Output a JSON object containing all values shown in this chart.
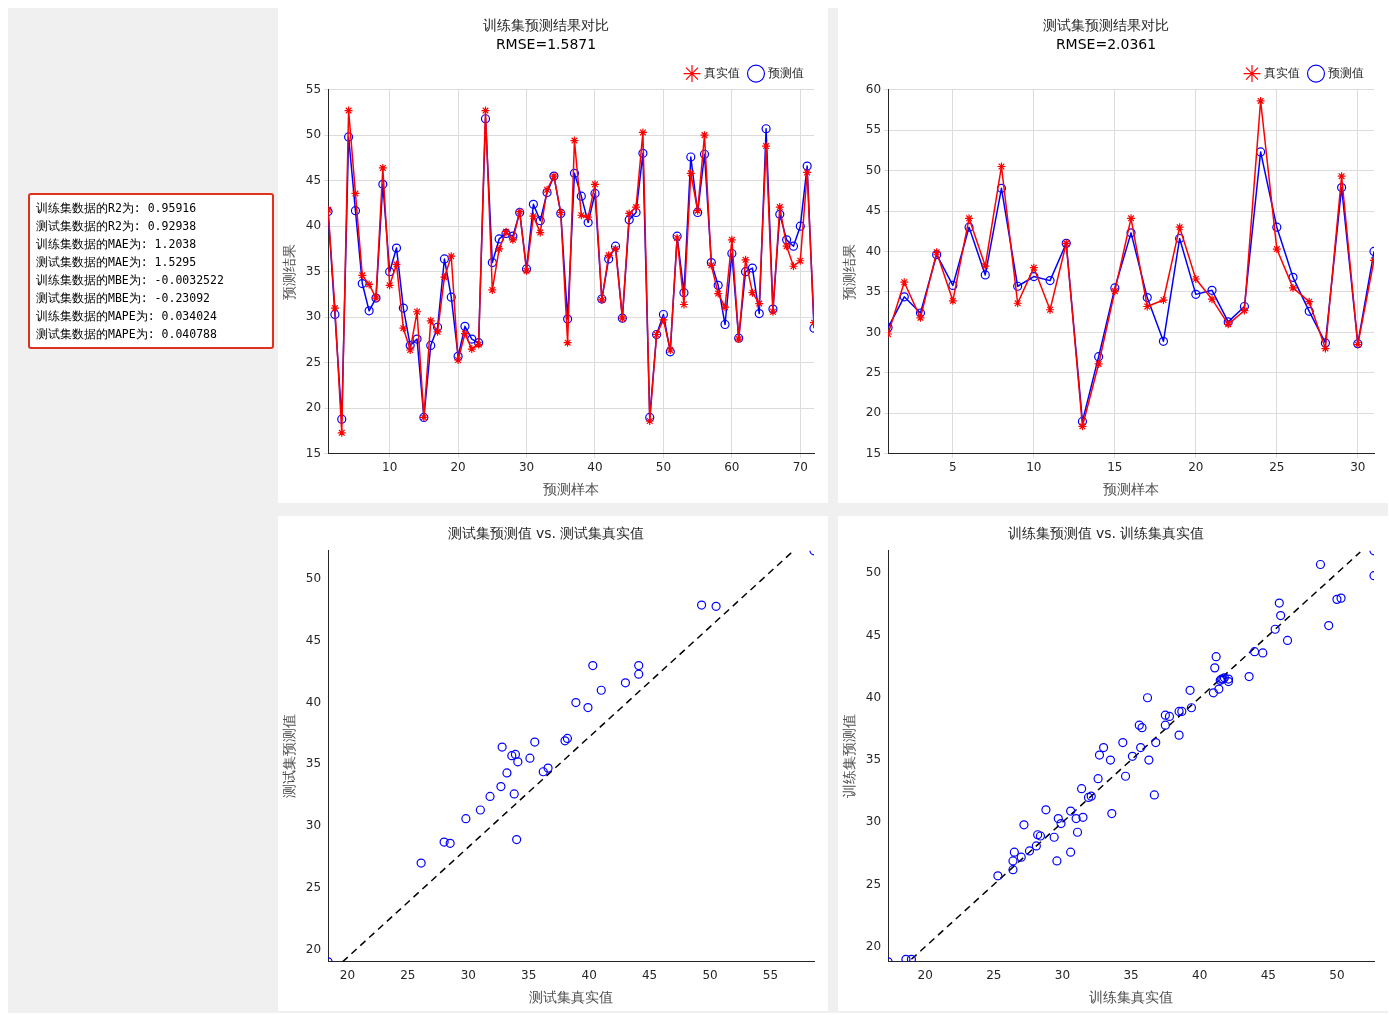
{
  "chart_data": [
    {
      "type": "other",
      "annotations": [
        "训练集数据的R2为: 0.95916",
        "测试集数据的R2为: 0.92938",
        "训练集数据的MAE为: 1.2038",
        "测试集数据的MAE为: 1.5295",
        "训练集数据的MBE为: -0.0032522",
        "测试集数据的MBE为: -0.23092",
        "训练集数据的MAPE为: 0.034024",
        "测试集数据的MAPE为: 0.040788"
      ]
    },
    {
      "type": "line",
      "title": "训练集预测结果对比",
      "subtitle": "RMSE=1.5871",
      "xlabel": "预测样本",
      "ylabel": "预测结果",
      "x": [
        1,
        2,
        3,
        4,
        5,
        6,
        7,
        8,
        9,
        10,
        11,
        12,
        13,
        14,
        15,
        16,
        17,
        18,
        19,
        20,
        21,
        22,
        23,
        24,
        25,
        26,
        27,
        28,
        29,
        30,
        31,
        32,
        33,
        34,
        35,
        36,
        37,
        38,
        39,
        40,
        41,
        42,
        43,
        44,
        45,
        46,
        47,
        48,
        49,
        50,
        51,
        52,
        53,
        54,
        55,
        56,
        57,
        58,
        59,
        60,
        61,
        62,
        63,
        64,
        65,
        66,
        67,
        68,
        69,
        70,
        71,
        72
      ],
      "xlim": [
        1,
        72
      ],
      "xticks": [
        10,
        20,
        30,
        40,
        50,
        60,
        70
      ],
      "ylim": [
        15,
        55
      ],
      "yticks": [
        15,
        20,
        25,
        30,
        35,
        40,
        45,
        50,
        55
      ],
      "grid": true,
      "legend": "top right",
      "series": [
        {
          "name": "真实值",
          "color": "#ff0000",
          "marker": "cross",
          "values": [
            41.8,
            31,
            17.3,
            52.7,
            43.6,
            34.6,
            33.6,
            32.1,
            46.4,
            33.5,
            35.8,
            28.8,
            26.4,
            30.6,
            19,
            29.6,
            28.4,
            34.4,
            36.7,
            25.3,
            28.2,
            26.5,
            27,
            52.7,
            33,
            37.5,
            39.4,
            38.5,
            41.6,
            35.1,
            41.1,
            39.3,
            44,
            45.5,
            41.5,
            27.2,
            49.4,
            41.2,
            41,
            44.6,
            31.9,
            36.8,
            37.5,
            29.9,
            41.4,
            42.1,
            50.3,
            18.6,
            28.1,
            29.7,
            26.4,
            38.7,
            31.4,
            45.8,
            41.7,
            50,
            35.7,
            32.6,
            31.1,
            38.5,
            27.6,
            36.3,
            32.7,
            31.5,
            48.8,
            30.6,
            42.1,
            37.8,
            35.6,
            36.2,
            45.9,
            29.4
          ]
        },
        {
          "name": "预测值",
          "color": "#0000ff",
          "marker": "circle",
          "values": [
            41.6,
            30.3,
            18.8,
            49.8,
            41.7,
            33.7,
            30.7,
            32.1,
            44.6,
            35,
            37.6,
            31,
            26.9,
            27.6,
            19,
            26.9,
            28.9,
            36.4,
            32.2,
            25.7,
            29,
            27.6,
            27.2,
            51.8,
            36,
            38.6,
            39.2,
            38.9,
            41.5,
            35.3,
            42.4,
            40.6,
            43.7,
            45.5,
            41.4,
            29.8,
            45.8,
            43.3,
            40.4,
            43.6,
            32,
            36.4,
            37.8,
            29.9,
            40.7,
            41.5,
            48,
            19,
            28.1,
            30.3,
            26.2,
            38.9,
            32.7,
            47.6,
            41.5,
            47.9,
            36,
            33.5,
            29.2,
            37,
            27.7,
            35,
            35.4,
            30.4,
            50.7,
            30.9,
            41.3,
            38.5,
            37.8,
            40,
            46.6,
            28.8
          ]
        }
      ]
    },
    {
      "type": "line",
      "title": "测试集预测结果对比",
      "subtitle": "RMSE=2.0361",
      "xlabel": "预测样本",
      "ylabel": "预测结果",
      "x": [
        1,
        2,
        3,
        4,
        5,
        6,
        7,
        8,
        9,
        10,
        11,
        12,
        13,
        14,
        15,
        16,
        17,
        18,
        19,
        20,
        21,
        22,
        23,
        24,
        25,
        26,
        27,
        28,
        29,
        30,
        31
      ],
      "xlim": [
        1,
        31
      ],
      "xticks": [
        5,
        10,
        15,
        20,
        25,
        30
      ],
      "ylim": [
        15,
        60
      ],
      "yticks": [
        15,
        20,
        25,
        30,
        35,
        40,
        45,
        50,
        55,
        60
      ],
      "grid": true,
      "legend": "top right",
      "series": [
        {
          "name": "真实值",
          "color": "#ff0000",
          "marker": "cross",
          "values": [
            29.8,
            36.2,
            31.8,
            39.9,
            33.9,
            44.1,
            38.2,
            50.5,
            33.6,
            38,
            32.8,
            41,
            18.4,
            26.1,
            35.1,
            44.1,
            33.2,
            34,
            43,
            36.6,
            34.1,
            31,
            32.7,
            58.6,
            40.3,
            35.5,
            33.8,
            28,
            49.3,
            28.5,
            38.9
          ]
        },
        {
          "name": "预测值",
          "color": "#0000ff",
          "marker": "circle",
          "values": [
            30.6,
            34.4,
            32.4,
            39.6,
            35.8,
            43,
            37.1,
            47.8,
            35.7,
            36.9,
            36.4,
            41,
            19,
            27,
            35.5,
            42.3,
            34.3,
            28.9,
            41.6,
            34.7,
            35.2,
            31.3,
            33.2,
            52.3,
            43,
            36.8,
            32.6,
            28.7,
            47.9,
            28.6,
            40
          ]
        }
      ]
    },
    {
      "type": "scatter",
      "title": "测试集预测值 vs. 测试集真实值",
      "xlabel": "测试集真实值",
      "ylabel": "测试集预测值",
      "xlim": [
        18.4,
        58.6
      ],
      "xticks": [
        20,
        25,
        30,
        35,
        40,
        45,
        50,
        55
      ],
      "ylim": [
        19,
        52.3
      ],
      "yticks": [
        20,
        25,
        30,
        35,
        40,
        45,
        50
      ],
      "series": [
        {
          "color": "#0000ff",
          "marker": "circle",
          "x": [
            29.8,
            36.2,
            31.8,
            39.9,
            33.9,
            44.1,
            38.2,
            50.5,
            33.6,
            38,
            32.8,
            41,
            18.4,
            26.1,
            35.1,
            44.1,
            33.2,
            34,
            43,
            36.6,
            34.1,
            31,
            32.7,
            58.6,
            40.3,
            35.5,
            33.8,
            28,
            49.3,
            28.5,
            38.9
          ],
          "values": [
            30.6,
            34.4,
            32.4,
            39.6,
            35.8,
            43,
            37.1,
            47.8,
            35.7,
            36.9,
            36.4,
            41,
            19,
            27,
            35.5,
            42.3,
            34.3,
            28.9,
            41.6,
            34.7,
            35.2,
            31.3,
            33.2,
            52.3,
            43,
            36.8,
            32.6,
            28.7,
            47.9,
            28.6,
            40
          ]
        },
        {
          "type": "line",
          "color": "#000000",
          "marker": "none",
          "line_style": "dashed",
          "x": [
            19.6,
            56.9
          ],
          "values": [
            19,
            52.3
          ]
        }
      ]
    },
    {
      "type": "scatter",
      "title": "训练集预测值 vs. 训练集真实值",
      "xlabel": "训练集真实值",
      "ylabel": "训练集预测值",
      "xlim": [
        17.3,
        52.7
      ],
      "xticks": [
        20,
        25,
        30,
        35,
        40,
        45,
        50
      ],
      "ylim": [
        18.8,
        51.8
      ],
      "yticks": [
        20,
        25,
        30,
        35,
        40,
        45,
        50
      ],
      "series": [
        {
          "color": "#0000ff",
          "marker": "circle",
          "x": [
            41.8,
            31,
            17.3,
            52.7,
            43.6,
            34.6,
            33.6,
            32.1,
            46.4,
            33.5,
            35.8,
            28.8,
            26.4,
            30.6,
            19,
            29.6,
            28.4,
            34.4,
            36.7,
            25.3,
            28.2,
            26.5,
            27,
            52.7,
            33,
            37.5,
            39.4,
            38.5,
            41.6,
            35.1,
            41.1,
            39.3,
            44,
            45.5,
            41.5,
            27.2,
            49.4,
            41.2,
            41,
            44.6,
            31.9,
            36.8,
            37.5,
            29.9,
            41.4,
            42.1,
            50.3,
            18.6,
            28.1,
            29.7,
            26.4,
            38.7,
            31.4,
            45.8,
            41.7,
            50,
            35.7,
            32.6,
            31.1,
            38.5,
            27.6,
            36.3,
            32.7,
            31.5,
            48.8,
            30.6,
            42.1,
            37.8,
            35.6,
            36.2,
            45.9,
            29.4
          ],
          "values": [
            41.6,
            30.3,
            18.8,
            49.8,
            41.7,
            33.7,
            30.7,
            32.1,
            44.6,
            35,
            37.6,
            31,
            26.9,
            27.6,
            19,
            26.9,
            28.9,
            36.4,
            32.2,
            25.7,
            29,
            27.6,
            27.2,
            51.8,
            36,
            38.6,
            39.2,
            38.9,
            41.5,
            35.3,
            42.4,
            40.6,
            43.7,
            45.5,
            41.4,
            29.8,
            45.8,
            43.3,
            40.4,
            43.6,
            32,
            36.4,
            37.8,
            29.9,
            40.7,
            41.5,
            48,
            19,
            28.1,
            30.3,
            26.2,
            38.9,
            32.7,
            47.6,
            41.5,
            47.9,
            36,
            33.5,
            29.2,
            37,
            27.7,
            35,
            35.4,
            30.4,
            50.7,
            30.9,
            41.3,
            38.5,
            37.8,
            40,
            46.6,
            28.8
          ]
        },
        {
          "type": "line",
          "color": "#000000",
          "marker": "none",
          "line_style": "dashed",
          "x": [
            19,
            51.7
          ],
          "values": [
            19,
            51.7
          ]
        }
      ]
    }
  ]
}
